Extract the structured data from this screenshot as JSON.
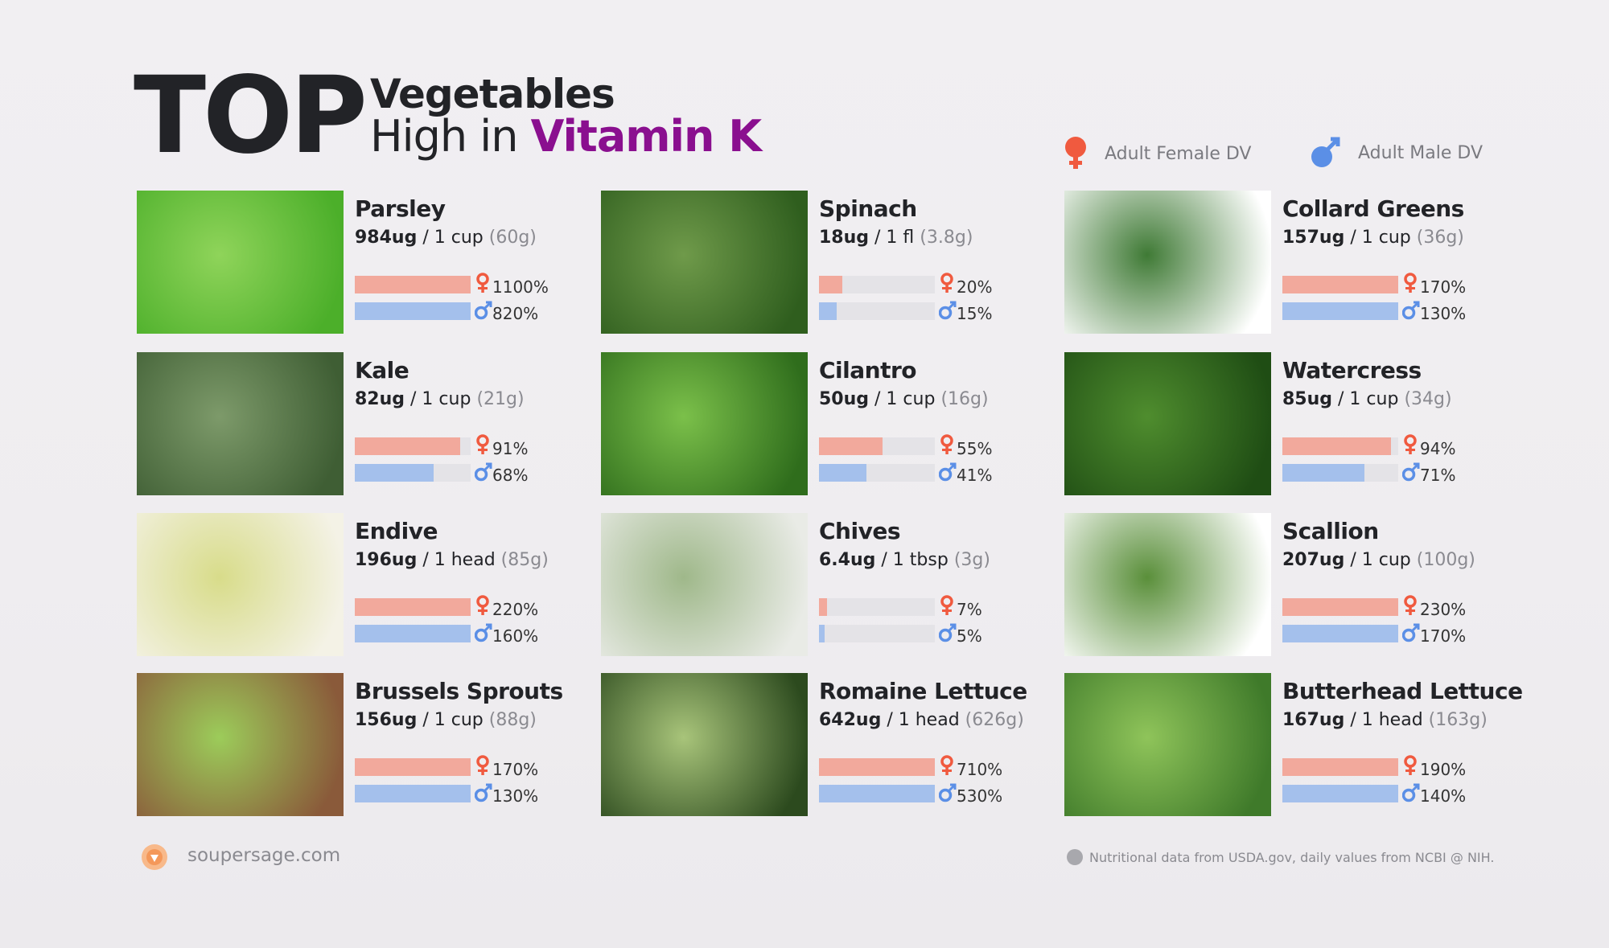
{
  "header": {
    "top": "TOP",
    "line1": "Vegetables",
    "line2_prefix": "High in ",
    "line2_accent": "Vitamin K",
    "accent_color": "#8a0f8f"
  },
  "legend": {
    "female_label": "Adult Female DV",
    "male_label": "Adult Male DV",
    "female_color": "#f05a3f",
    "male_color": "#5b8fe6"
  },
  "items": [
    {
      "name": "Parsley",
      "amount": "984ug",
      "serving": "/ 1 cup",
      "weight": "(60g)",
      "female": "1100%",
      "male": "820%",
      "female_pct": 1100,
      "male_pct": 820,
      "image": "parsley",
      "colors": [
        "#4caf2a",
        "#8fd45a"
      ]
    },
    {
      "name": "Spinach",
      "amount": "18ug",
      "serving": "/ 1 fl",
      "weight": "(3.8g)",
      "female": "20%",
      "male": "15%",
      "female_pct": 20,
      "male_pct": 15,
      "image": "spinach",
      "colors": [
        "#2f5e1e",
        "#6f9a4a"
      ]
    },
    {
      "name": "Collard Greens",
      "amount": "157ug",
      "serving": "/ 1 cup",
      "weight": "(36g)",
      "female": "170%",
      "male": "130%",
      "female_pct": 170,
      "male_pct": 130,
      "image": "collard-greens",
      "colors": [
        "#ffffff",
        "#3f7a35"
      ]
    },
    {
      "name": "Kale",
      "amount": "82ug",
      "serving": "/ 1 cup",
      "weight": "(21g)",
      "female": "91%",
      "male": "68%",
      "female_pct": 91,
      "male_pct": 68,
      "image": "kale",
      "colors": [
        "#3f5e34",
        "#7d9a6a"
      ]
    },
    {
      "name": "Cilantro",
      "amount": "50ug",
      "serving": "/ 1 cup",
      "weight": "(16g)",
      "female": "55%",
      "male": "41%",
      "female_pct": 55,
      "male_pct": 41,
      "image": "cilantro",
      "colors": [
        "#2f6d1c",
        "#7bc04a"
      ]
    },
    {
      "name": "Watercress",
      "amount": "85ug",
      "serving": "/ 1 cup",
      "weight": "(34g)",
      "female": "94%",
      "male": "71%",
      "female_pct": 94,
      "male_pct": 71,
      "image": "watercress",
      "colors": [
        "#1f4d14",
        "#4f8d2e"
      ]
    },
    {
      "name": "Endive",
      "amount": "196ug",
      "serving": "/ 1 head",
      "weight": "(85g)",
      "female": "220%",
      "male": "160%",
      "female_pct": 220,
      "male_pct": 160,
      "image": "endive",
      "colors": [
        "#f4f2e6",
        "#d8dc8a"
      ]
    },
    {
      "name": "Chives",
      "amount": "6.4ug",
      "serving": "/ 1 tbsp",
      "weight": "(3g)",
      "female": "7%",
      "male": "5%",
      "female_pct": 7,
      "male_pct": 5,
      "image": "chives",
      "colors": [
        "#e9ebe6",
        "#9fb88a"
      ]
    },
    {
      "name": "Scallion",
      "amount": "207ug",
      "serving": "/ 1 cup",
      "weight": "(100g)",
      "female": "230%",
      "male": "170%",
      "female_pct": 230,
      "male_pct": 170,
      "image": "scallion",
      "colors": [
        "#ffffff",
        "#5a8f3a"
      ]
    },
    {
      "name": "Brussels Sprouts",
      "amount": "156ug",
      "serving": "/ 1 cup",
      "weight": "(88g)",
      "female": "170%",
      "male": "130%",
      "female_pct": 170,
      "male_pct": 130,
      "image": "brussels-sprouts",
      "colors": [
        "#8a5a3a",
        "#9ccc5a"
      ]
    },
    {
      "name": "Romaine Lettuce",
      "amount": "642ug",
      "serving": "/ 1 head",
      "weight": "(626g)",
      "female": "710%",
      "male": "530%",
      "female_pct": 710,
      "male_pct": 530,
      "image": "romaine-lettuce",
      "colors": [
        "#2c4a1e",
        "#a8c47a"
      ]
    },
    {
      "name": "Butterhead Lettuce",
      "amount": "167ug",
      "serving": "/ 1 head",
      "weight": "(163g)",
      "female": "190%",
      "male": "140%",
      "female_pct": 190,
      "male_pct": 140,
      "image": "butterhead-lettuce",
      "colors": [
        "#3f7a2a",
        "#8fc45a"
      ]
    }
  ],
  "footer": {
    "site": "soupersage.com",
    "note": "Nutritional data from USDA.gov, daily values from NCBI @ NIH."
  }
}
